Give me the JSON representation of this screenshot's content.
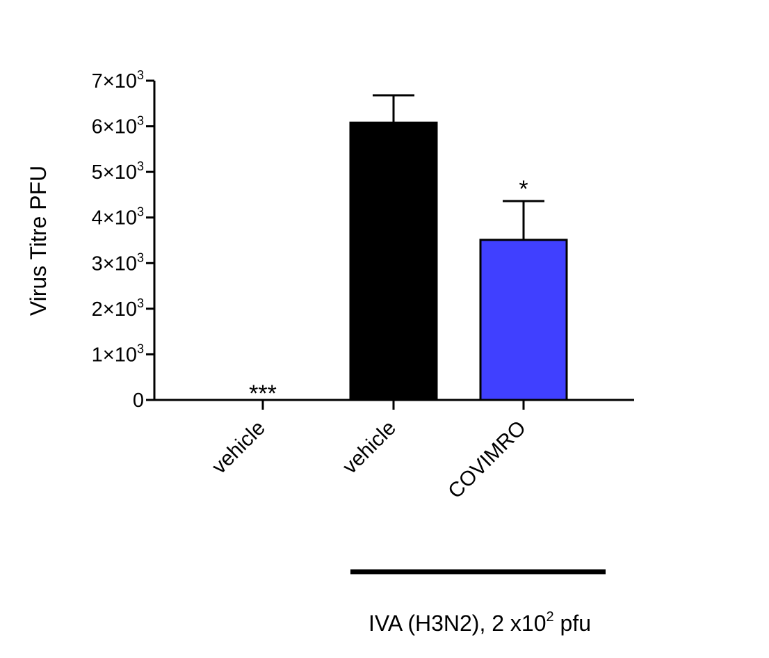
{
  "chart_data": {
    "type": "bar",
    "title": "",
    "ylabel": "Virus Titre  PFU",
    "xlabel": "",
    "ylim": [
      0,
      7000
    ],
    "yticks": [
      {
        "value": 0,
        "base": "0",
        "exp": ""
      },
      {
        "value": 1000,
        "base": "1×10",
        "exp": "3"
      },
      {
        "value": 2000,
        "base": "2×10",
        "exp": "3"
      },
      {
        "value": 3000,
        "base": "3×10",
        "exp": "3"
      },
      {
        "value": 4000,
        "base": "4×10",
        "exp": "3"
      },
      {
        "value": 5000,
        "base": "5×10",
        "exp": "3"
      },
      {
        "value": 6000,
        "base": "6×10",
        "exp": "3"
      },
      {
        "value": 7000,
        "base": "7×10",
        "exp": "3"
      }
    ],
    "categories": [
      "vehicle",
      "vehicle",
      "COVIMRO"
    ],
    "values": [
      0,
      6080,
      3510
    ],
    "errors": [
      0,
      600,
      850
    ],
    "colors": [
      "#000000",
      "#000000",
      "#4040ff"
    ],
    "significance": [
      "***",
      "",
      "*"
    ],
    "group": {
      "label_base": "IVA (H3N2), 2 x10",
      "label_exp": "2",
      "label_suffix": " pfu",
      "categories": [
        1,
        2
      ]
    },
    "grid": false,
    "legend": "none"
  }
}
